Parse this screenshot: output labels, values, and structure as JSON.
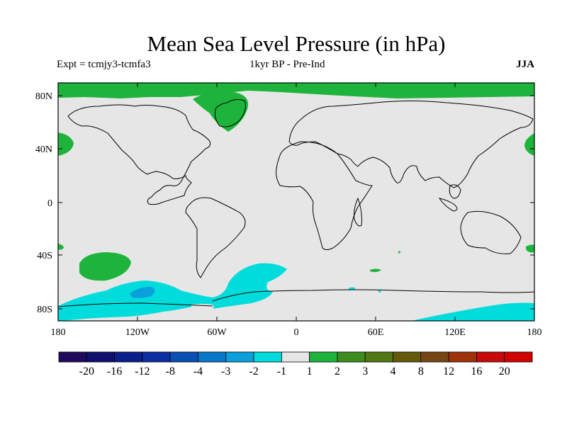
{
  "title": "Mean Sea Level Pressure (in hPa)",
  "experiment": "Expt = tcmjy3-tcmfa3",
  "period": "1kyr BP - Pre-Ind",
  "season": "JJA",
  "lat_ticks": [
    "80N",
    "40N",
    "0",
    "40S",
    "80S"
  ],
  "lon_ticks": [
    "180",
    "120W",
    "60W",
    "0",
    "60E",
    "120E",
    "180"
  ],
  "colorbar": {
    "labels": [
      "-20",
      "-16",
      "-12",
      "-8",
      "-4",
      "-3",
      "-2",
      "-1",
      "1",
      "2",
      "3",
      "4",
      "8",
      "12",
      "16",
      "20"
    ],
    "colors": [
      "#1f0a5e",
      "#0f0f6e",
      "#0a1e8c",
      "#0a2fa0",
      "#0a50b4",
      "#0a78c8",
      "#0aa0dc",
      "#00dcdc",
      "#e6e6e6",
      "#1eb43c",
      "#3c8c1e",
      "#507814",
      "#645a0a",
      "#784614",
      "#a0320a",
      "#c80a0a",
      "#d20000"
    ]
  },
  "colors": {
    "ocean_land": "#e6e6e6",
    "positive": "#1eb43c",
    "negative": "#00dcdc",
    "negative_strong": "#0aa0dc"
  }
}
